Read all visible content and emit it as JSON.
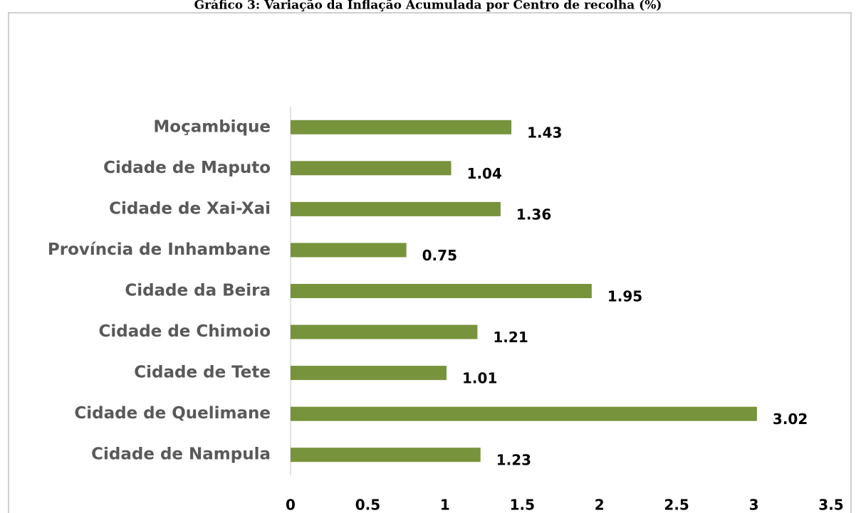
{
  "chart_data": {
    "type": "bar",
    "orientation": "horizontal",
    "title": "Gráfico 3: Variação da Inflação Acumulada por Centro de recolha (%)",
    "categories": [
      "Moçambique",
      "Cidade de Maputo",
      "Cidade de Xai-Xai",
      "Província de Inhambane",
      "Cidade da Beira",
      "Cidade de Chimoio",
      "Cidade de Tete",
      "Cidade de Quelimane",
      "Cidade de Nampula"
    ],
    "values": [
      1.43,
      1.04,
      1.36,
      0.75,
      1.95,
      1.21,
      1.01,
      3.02,
      1.23
    ],
    "color": "#77933c",
    "xlim": [
      0,
      3.5
    ],
    "xticks": [
      0,
      0.5,
      1,
      1.5,
      2,
      2.5,
      3,
      3.5
    ],
    "grid": false
  }
}
